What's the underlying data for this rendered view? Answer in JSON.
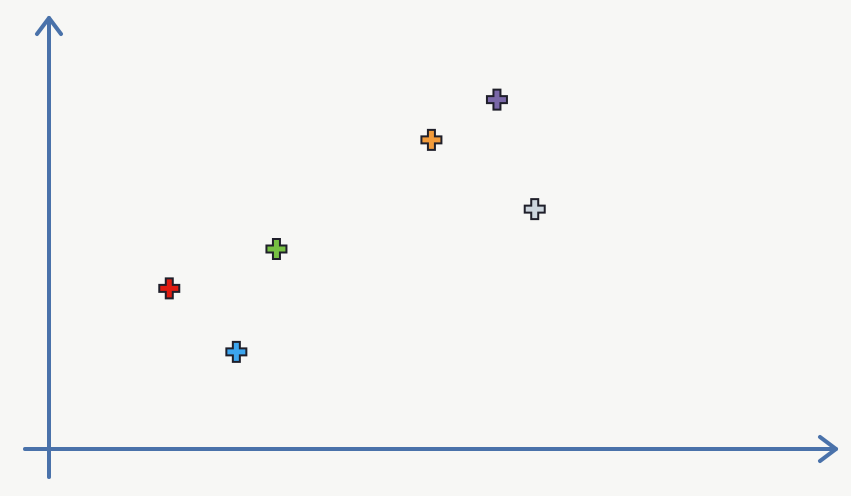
{
  "chart_data": {
    "type": "scatter",
    "title": "",
    "xlabel": "",
    "ylabel": "",
    "grid": false,
    "legend": "none",
    "xlim": [
      0,
      10
    ],
    "ylim": [
      0,
      10
    ],
    "points": [
      {
        "x": 1.56,
        "y": 3.87,
        "color": "#e01b10",
        "icon": "plus-marker"
      },
      {
        "x": 2.43,
        "y": 2.34,
        "color": "#3ca5ee",
        "icon": "plus-marker"
      },
      {
        "x": 2.95,
        "y": 4.82,
        "color": "#77c043",
        "icon": "plus-marker"
      },
      {
        "x": 4.96,
        "y": 7.45,
        "color": "#f29b3a",
        "icon": "plus-marker"
      },
      {
        "x": 5.81,
        "y": 8.42,
        "color": "#7a68a8",
        "icon": "plus-marker"
      },
      {
        "x": 6.3,
        "y": 5.78,
        "color": "#cdd6de",
        "icon": "plus-marker"
      }
    ],
    "axis_color": "#4a72aa"
  }
}
